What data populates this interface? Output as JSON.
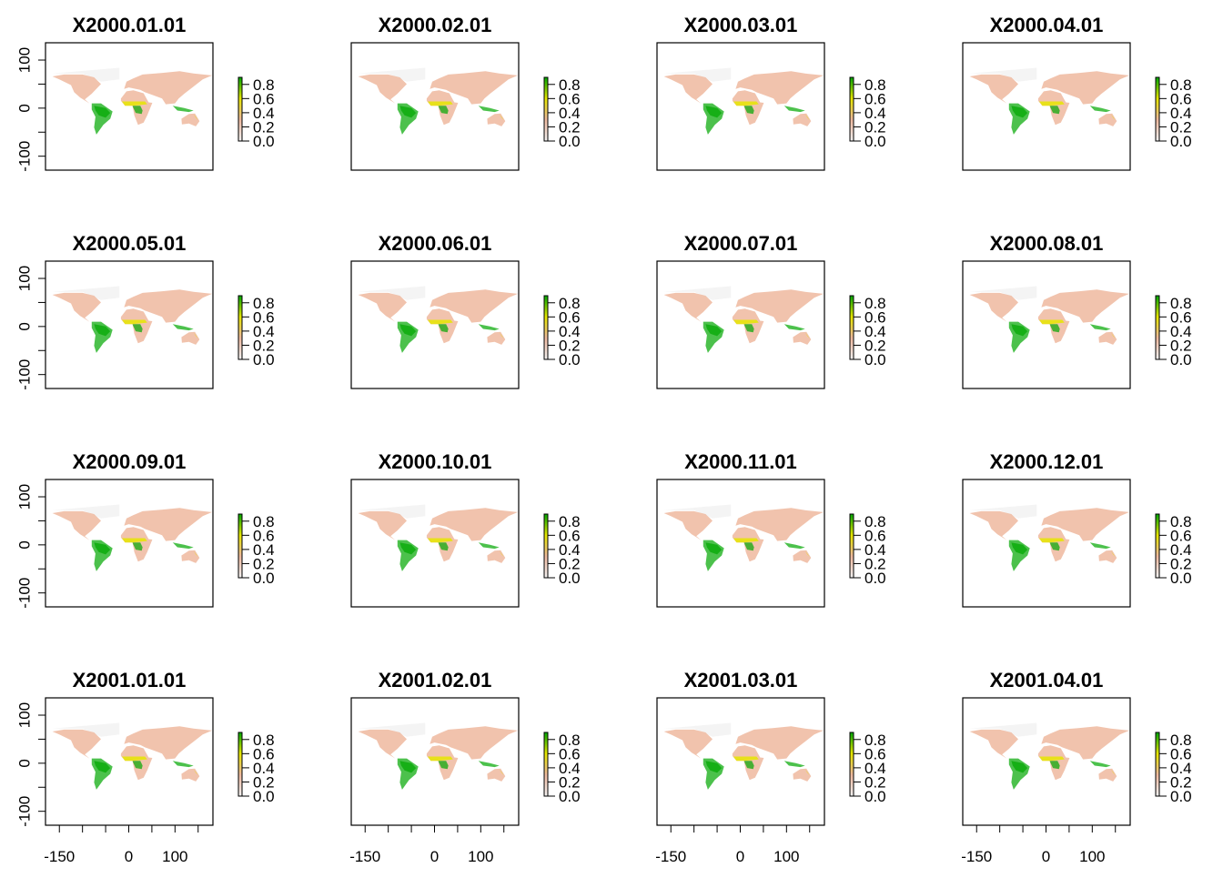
{
  "chart_data": [
    {
      "type": "raster",
      "title": "X2000.01.01",
      "xlim": [
        -180,
        182
      ],
      "ylim": [
        -129,
        136
      ],
      "zlim": [
        0,
        0.9
      ],
      "zticks": [
        {
          "value": 0,
          "label": "0.0"
        },
        0.2,
        0.4,
        0.6,
        0.8
      ],
      "colors": [
        "#F2F2F2",
        "#EEB99F",
        "#E6E600",
        "#00A600"
      ],
      "yticks": [
        -100,
        {
          "value": -50,
          "label": null
        },
        0,
        {
          "value": 50,
          "label": null
        },
        100
      ]
    },
    {
      "type": "raster",
      "title": "X2000.02.01",
      "xlim": [
        -180,
        182
      ],
      "ylim": [
        -129,
        136
      ],
      "zlim": [
        0,
        0.9
      ],
      "zticks": [
        {
          "value": 0,
          "label": "0.0"
        },
        0.2,
        0.4,
        0.6,
        0.8
      ],
      "colors": [
        "#F2F2F2",
        "#EEB99F",
        "#E6E600",
        "#00A600"
      ]
    },
    {
      "type": "raster",
      "title": "X2000.03.01",
      "xlim": [
        -180,
        182
      ],
      "ylim": [
        -129,
        136
      ],
      "zlim": [
        0,
        0.9
      ],
      "zticks": [
        {
          "value": 0,
          "label": "0.0"
        },
        0.2,
        0.4,
        0.6,
        0.8
      ],
      "colors": [
        "#F2F2F2",
        "#EEB99F",
        "#E6E600",
        "#00A600"
      ]
    },
    {
      "type": "raster",
      "title": "X2000.04.01",
      "xlim": [
        -180,
        182
      ],
      "ylim": [
        -129,
        136
      ],
      "zlim": [
        0,
        0.9
      ],
      "zticks": [
        {
          "value": 0,
          "label": "0.0"
        },
        0.2,
        0.4,
        0.6,
        0.8
      ],
      "colors": [
        "#F2F2F2",
        "#EEB99F",
        "#E6E600",
        "#00A600"
      ]
    },
    {
      "type": "raster",
      "title": "X2000.05.01",
      "xlim": [
        -180,
        182
      ],
      "ylim": [
        -129,
        136
      ],
      "zlim": [
        0,
        0.9
      ],
      "zticks": [
        {
          "value": 0,
          "label": "0.0"
        },
        0.2,
        0.4,
        0.6,
        0.8
      ],
      "colors": [
        "#F2F2F2",
        "#EEB99F",
        "#E6E600",
        "#00A600"
      ],
      "yticks": [
        -100,
        {
          "value": -50,
          "label": null
        },
        0,
        {
          "value": 50,
          "label": null
        },
        100
      ]
    },
    {
      "type": "raster",
      "title": "X2000.06.01",
      "xlim": [
        -180,
        182
      ],
      "ylim": [
        -129,
        136
      ],
      "zlim": [
        0,
        0.9
      ],
      "zticks": [
        {
          "value": 0,
          "label": "0.0"
        },
        0.2,
        0.4,
        0.6,
        0.8
      ],
      "colors": [
        "#F2F2F2",
        "#EEB99F",
        "#E6E600",
        "#00A600"
      ]
    },
    {
      "type": "raster",
      "title": "X2000.07.01",
      "xlim": [
        -180,
        182
      ],
      "ylim": [
        -129,
        136
      ],
      "zlim": [
        0,
        0.9
      ],
      "zticks": [
        {
          "value": 0,
          "label": "0.0"
        },
        0.2,
        0.4,
        0.6,
        0.8
      ],
      "colors": [
        "#F2F2F2",
        "#EEB99F",
        "#E6E600",
        "#00A600"
      ]
    },
    {
      "type": "raster",
      "title": "X2000.08.01",
      "xlim": [
        -180,
        182
      ],
      "ylim": [
        -129,
        136
      ],
      "zlim": [
        0,
        0.9
      ],
      "zticks": [
        {
          "value": 0,
          "label": "0.0"
        },
        0.2,
        0.4,
        0.6,
        0.8
      ],
      "colors": [
        "#F2F2F2",
        "#EEB99F",
        "#E6E600",
        "#00A600"
      ]
    },
    {
      "type": "raster",
      "title": "X2000.09.01",
      "xlim": [
        -180,
        182
      ],
      "ylim": [
        -129,
        136
      ],
      "zlim": [
        0,
        0.9
      ],
      "zticks": [
        {
          "value": 0,
          "label": "0.0"
        },
        0.2,
        0.4,
        0.6,
        0.8
      ],
      "colors": [
        "#F2F2F2",
        "#EEB99F",
        "#E6E600",
        "#00A600"
      ],
      "yticks": [
        -100,
        {
          "value": -50,
          "label": null
        },
        0,
        {
          "value": 50,
          "label": null
        },
        100
      ]
    },
    {
      "type": "raster",
      "title": "X2000.10.01",
      "xlim": [
        -180,
        182
      ],
      "ylim": [
        -129,
        136
      ],
      "zlim": [
        0,
        0.9
      ],
      "zticks": [
        {
          "value": 0,
          "label": "0.0"
        },
        0.2,
        0.4,
        0.6,
        0.8
      ],
      "colors": [
        "#F2F2F2",
        "#EEB99F",
        "#E6E600",
        "#00A600"
      ]
    },
    {
      "type": "raster",
      "title": "X2000.11.01",
      "xlim": [
        -180,
        182
      ],
      "ylim": [
        -129,
        136
      ],
      "zlim": [
        0,
        0.9
      ],
      "zticks": [
        {
          "value": 0,
          "label": "0.0"
        },
        0.2,
        0.4,
        0.6,
        0.8
      ],
      "colors": [
        "#F2F2F2",
        "#EEB99F",
        "#E6E600",
        "#00A600"
      ]
    },
    {
      "type": "raster",
      "title": "X2000.12.01",
      "xlim": [
        -180,
        182
      ],
      "ylim": [
        -129,
        136
      ],
      "zlim": [
        0,
        0.9
      ],
      "zticks": [
        {
          "value": 0,
          "label": "0.0"
        },
        0.2,
        0.4,
        0.6,
        0.8
      ],
      "colors": [
        "#F2F2F2",
        "#EEB99F",
        "#E6E600",
        "#00A600"
      ]
    },
    {
      "type": "raster",
      "title": "X2001.01.01",
      "xlim": [
        -180,
        182
      ],
      "ylim": [
        -129,
        136
      ],
      "zlim": [
        0,
        0.9
      ],
      "zticks": [
        {
          "value": 0,
          "label": "0.0"
        },
        0.2,
        0.4,
        0.6,
        0.8
      ],
      "colors": [
        "#F2F2F2",
        "#EEB99F",
        "#E6E600",
        "#00A600"
      ],
      "yticks": [
        -100,
        {
          "value": -50,
          "label": null
        },
        0,
        {
          "value": 50,
          "label": null
        },
        100
      ],
      "xticks": [
        -150,
        {
          "value": -100,
          "label": null
        },
        {
          "value": -50,
          "label": null
        },
        0,
        {
          "value": 50,
          "label": null
        },
        100,
        {
          "value": 150,
          "label": null
        }
      ]
    },
    {
      "type": "raster",
      "title": "X2001.02.01",
      "xlim": [
        -180,
        182
      ],
      "ylim": [
        -129,
        136
      ],
      "zlim": [
        0,
        0.9
      ],
      "zticks": [
        {
          "value": 0,
          "label": "0.0"
        },
        0.2,
        0.4,
        0.6,
        0.8
      ],
      "colors": [
        "#F2F2F2",
        "#EEB99F",
        "#E6E600",
        "#00A600"
      ],
      "xticks": [
        -150,
        {
          "value": -100,
          "label": null
        },
        {
          "value": -50,
          "label": null
        },
        0,
        {
          "value": 50,
          "label": null
        },
        100,
        {
          "value": 150,
          "label": null
        }
      ]
    },
    {
      "type": "raster",
      "title": "X2001.03.01",
      "xlim": [
        -180,
        182
      ],
      "ylim": [
        -129,
        136
      ],
      "zlim": [
        0,
        0.9
      ],
      "zticks": [
        {
          "value": 0,
          "label": "0.0"
        },
        0.2,
        0.4,
        0.6,
        0.8
      ],
      "colors": [
        "#F2F2F2",
        "#EEB99F",
        "#E6E600",
        "#00A600"
      ],
      "xticks": [
        -150,
        {
          "value": -100,
          "label": null
        },
        {
          "value": -50,
          "label": null
        },
        0,
        {
          "value": 50,
          "label": null
        },
        100,
        {
          "value": 150,
          "label": null
        }
      ]
    },
    {
      "type": "raster",
      "title": "X2001.04.01",
      "xlim": [
        -180,
        182
      ],
      "ylim": [
        -129,
        136
      ],
      "zlim": [
        0,
        0.9
      ],
      "zticks": [
        {
          "value": 0,
          "label": "0.0"
        },
        0.2,
        0.4,
        0.6,
        0.8
      ],
      "colors": [
        "#F2F2F2",
        "#EEB99F",
        "#E6E600",
        "#00A600"
      ],
      "xticks": [
        -150,
        {
          "value": -100,
          "label": null
        },
        {
          "value": -50,
          "label": null
        },
        0,
        {
          "value": 50,
          "label": null
        },
        100,
        {
          "value": 150,
          "label": null
        }
      ]
    }
  ]
}
